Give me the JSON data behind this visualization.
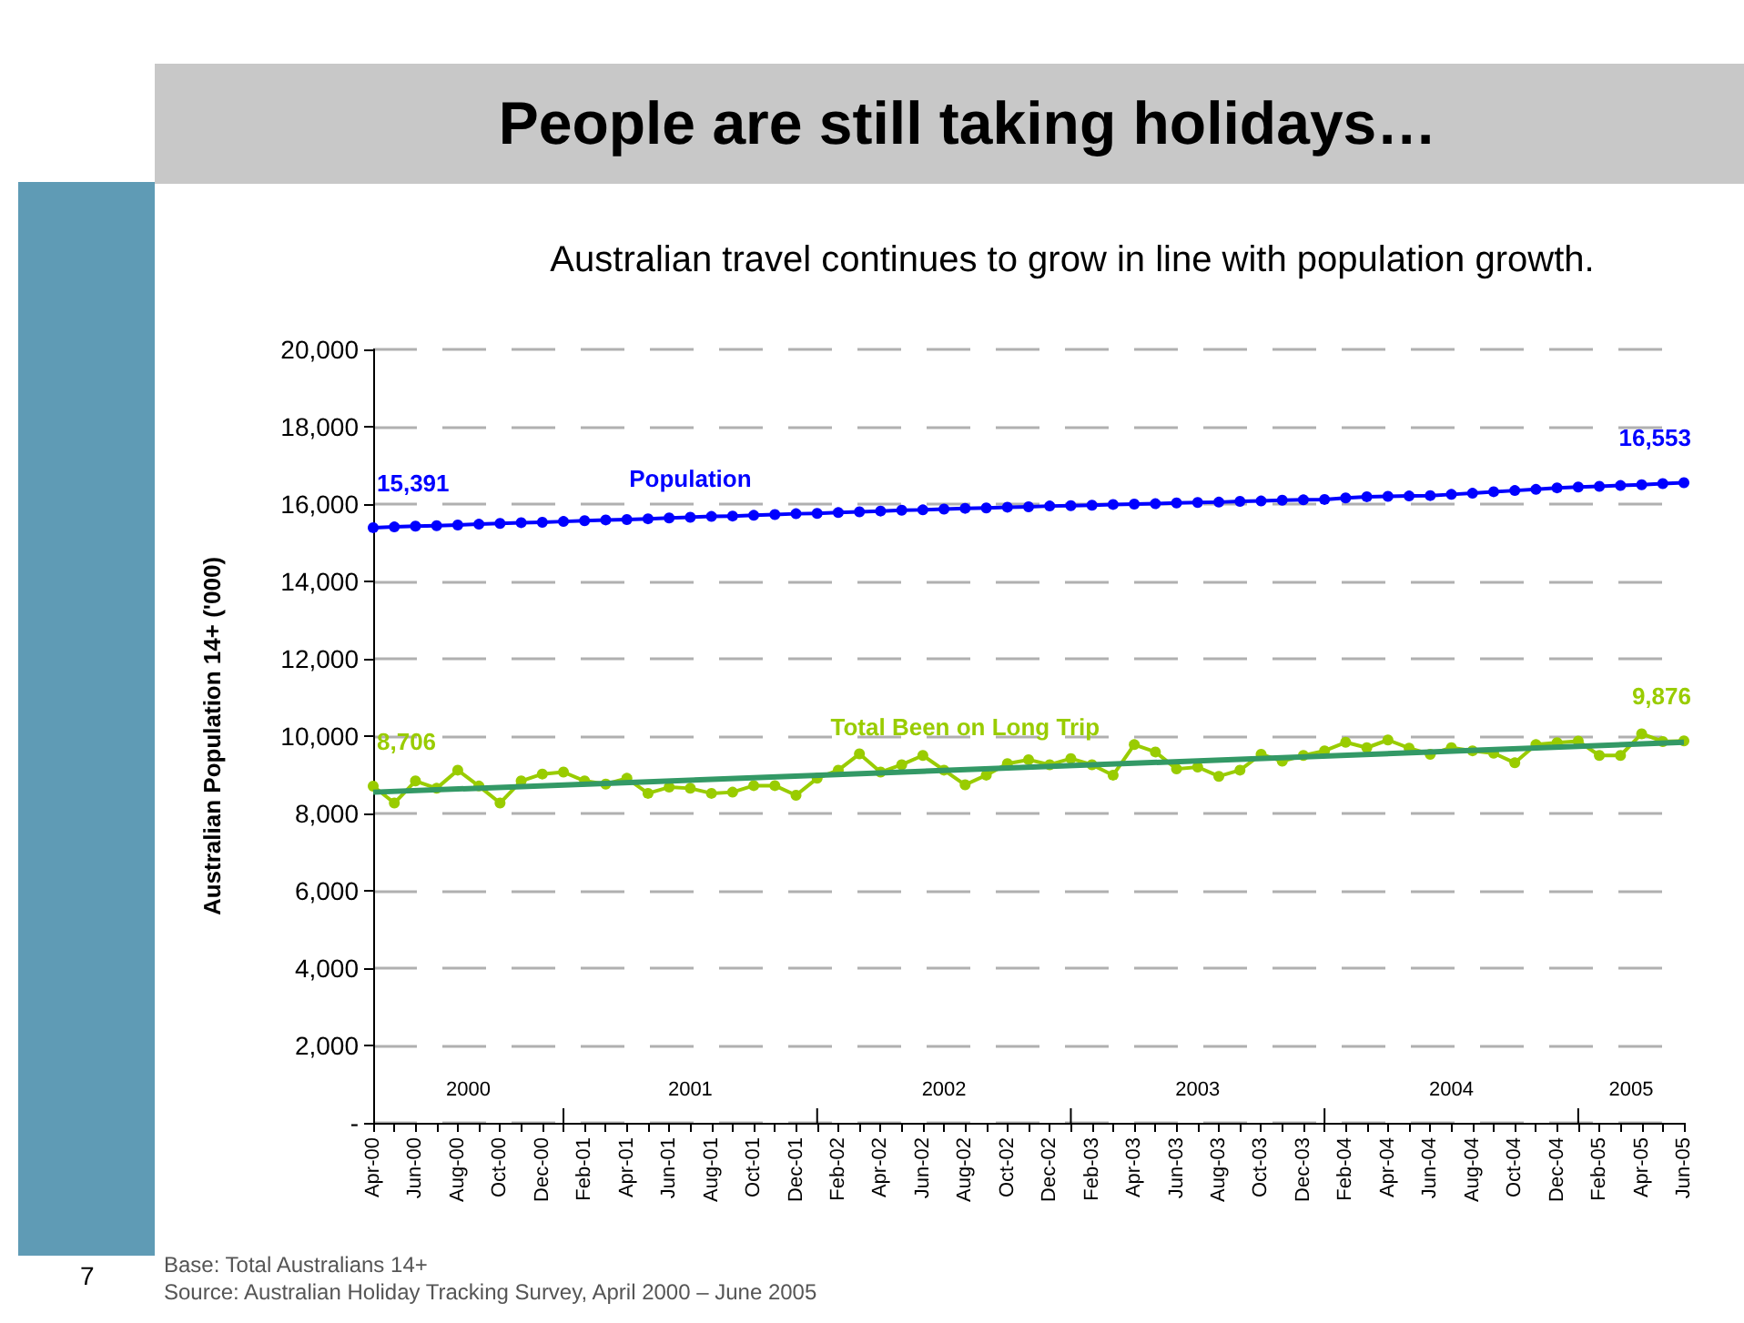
{
  "chart_data": {
    "type": "line",
    "title": "People are still taking holidays…",
    "subtitle": "Australian travel continues to grow in line with population growth.",
    "ylabel": "Australian Population 14+ ('000)",
    "categories": [
      "Apr-00",
      null,
      "Jun-00",
      null,
      "Aug-00",
      null,
      "Oct-00",
      null,
      "Dec-00",
      null,
      "Feb-01",
      null,
      "Apr-01",
      null,
      "Jun-01",
      null,
      "Aug-01",
      null,
      "Oct-01",
      null,
      "Dec-01",
      null,
      "Feb-02",
      null,
      "Apr-02",
      null,
      "Jun-02",
      null,
      "Aug-02",
      null,
      "Oct-02",
      null,
      "Dec-02",
      null,
      "Feb-03",
      null,
      "Apr-03",
      null,
      "Jun-03",
      null,
      "Aug-03",
      null,
      "Oct-03",
      null,
      "Dec-03",
      null,
      "Feb-04",
      null,
      "Apr-04",
      null,
      "Jun-04",
      null,
      "Aug-04",
      null,
      "Oct-04",
      null,
      "Dec-04",
      null,
      "Feb-05",
      null,
      "Apr-05",
      null,
      "Jun-05"
    ],
    "series": [
      {
        "name": "Population",
        "color": "#0000ff",
        "values": [
          15391,
          15410,
          15430,
          15440,
          15460,
          15480,
          15500,
          15520,
          15530,
          15550,
          15570,
          15590,
          15600,
          15620,
          15640,
          15660,
          15680,
          15690,
          15710,
          15730,
          15750,
          15760,
          15780,
          15800,
          15820,
          15840,
          15850,
          15870,
          15890,
          15900,
          15920,
          15930,
          15950,
          15960,
          15970,
          15990,
          16000,
          16010,
          16030,
          16040,
          16050,
          16070,
          16080,
          16100,
          16110,
          16120,
          16160,
          16190,
          16200,
          16210,
          16220,
          16250,
          16280,
          16320,
          16350,
          16380,
          16420,
          16440,
          16460,
          16480,
          16500,
          16530,
          16553
        ],
        "value_labels": [
          "15,391",
          null,
          null,
          null,
          null,
          null,
          null,
          null,
          null,
          null,
          null,
          null,
          null,
          null,
          null,
          null,
          null,
          null,
          null,
          null,
          null,
          null,
          null,
          null,
          null,
          null,
          null,
          null,
          null,
          null,
          null,
          null,
          null,
          null,
          null,
          null,
          null,
          null,
          null,
          null,
          null,
          null,
          null,
          null,
          null,
          null,
          null,
          null,
          null,
          null,
          null,
          null,
          null,
          null,
          null,
          null,
          null,
          null,
          null,
          null,
          null,
          null,
          "16,553"
        ]
      },
      {
        "name": "Total Been on Long Trip",
        "color": "#99cc00",
        "values": [
          8706,
          8270,
          8840,
          8650,
          9120,
          8710,
          8270,
          8840,
          9020,
          9070,
          8840,
          8760,
          8910,
          8520,
          8680,
          8650,
          8520,
          8550,
          8720,
          8720,
          8470,
          8910,
          9120,
          9540,
          9070,
          9260,
          9500,
          9120,
          8740,
          8990,
          9290,
          9390,
          9260,
          9420,
          9260,
          8990,
          9780,
          9590,
          9150,
          9200,
          8960,
          9120,
          9530,
          9350,
          9500,
          9620,
          9840,
          9700,
          9900,
          9690,
          9530,
          9700,
          9620,
          9560,
          9310,
          9780,
          9830,
          9870,
          9500,
          9500,
          10060,
          9860,
          9876
        ],
        "value_labels": [
          "8,706",
          null,
          null,
          null,
          null,
          null,
          null,
          null,
          null,
          null,
          null,
          null,
          null,
          null,
          null,
          null,
          null,
          null,
          null,
          null,
          null,
          null,
          null,
          null,
          null,
          null,
          null,
          null,
          null,
          null,
          null,
          null,
          null,
          null,
          null,
          null,
          null,
          null,
          null,
          null,
          null,
          null,
          null,
          null,
          null,
          null,
          null,
          null,
          null,
          null,
          null,
          null,
          null,
          null,
          null,
          null,
          null,
          null,
          null,
          null,
          null,
          null,
          "9,876"
        ]
      },
      {
        "type": "line",
        "color": "#339966",
        "x": [
          "Apr-00",
          "Jun-05"
        ],
        "values": [
          8550,
          9840
        ],
        "marker": "none"
      }
    ],
    "ylim": [
      0,
      20000
    ],
    "yticks": [
      {
        "value": 0,
        "label": "-"
      },
      {
        "value": 2000,
        "label": "2,000"
      },
      {
        "value": 4000,
        "label": "4,000"
      },
      {
        "value": 6000,
        "label": "6,000"
      },
      {
        "value": 8000,
        "label": "8,000"
      },
      {
        "value": 10000,
        "label": "10,000"
      },
      {
        "value": 12000,
        "label": "12,000"
      },
      {
        "value": 14000,
        "label": "14,000"
      },
      {
        "value": 16000,
        "label": "16,000"
      },
      {
        "value": 18000,
        "label": "18,000"
      },
      {
        "value": 20000,
        "label": "20,000"
      }
    ],
    "grid": "y",
    "legend": false,
    "marker": "circle",
    "line_style": "solid",
    "annotations": [
      "2000",
      "2001",
      "2002",
      "2003",
      "2004",
      "2005",
      "Base: Total Australians 14+",
      "Source: Australian Holiday Tracking Survey, April 2000 – June 2005",
      "7"
    ]
  }
}
